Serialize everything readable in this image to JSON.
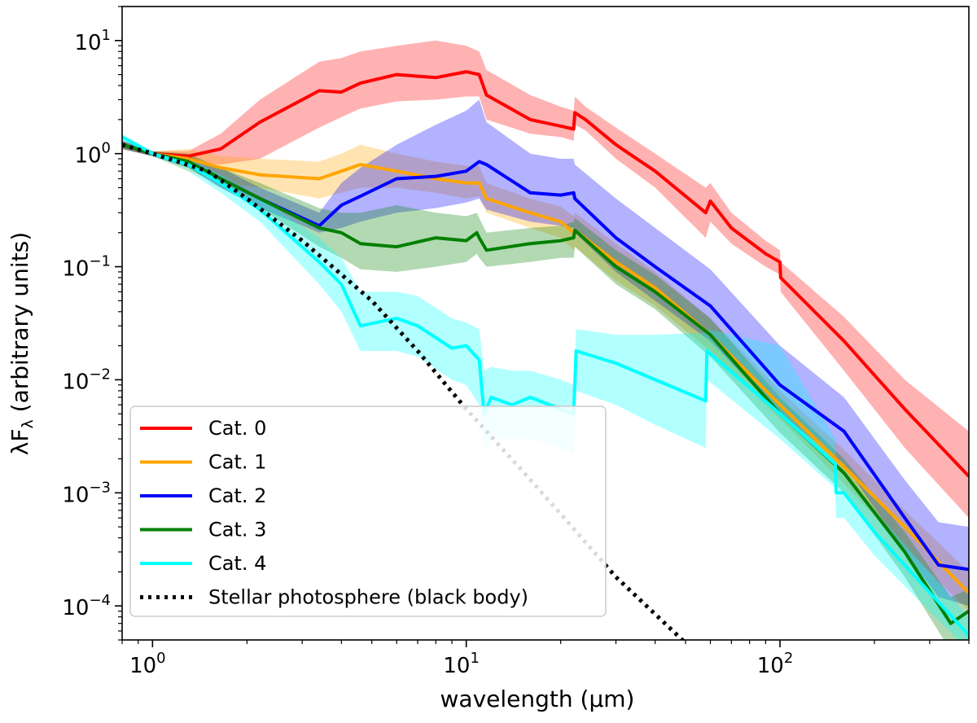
{
  "chart_data": {
    "type": "line",
    "x_scale": "log",
    "y_scale": "log",
    "xlim": [
      0.8,
      400
    ],
    "ylim": [
      5e-05,
      20
    ],
    "xlabel": "wavelength (μm)",
    "ylabel": "λF",
    "ylabel_sub": "λ",
    "ylabel_suffix": " (arbitrary units)",
    "x_ticks": [
      {
        "value": 1,
        "base": "10",
        "exp": "0"
      },
      {
        "value": 10,
        "base": "10",
        "exp": "1"
      },
      {
        "value": 100,
        "base": "10",
        "exp": "2"
      }
    ],
    "y_ticks": [
      {
        "value": 10,
        "base": "10",
        "exp": "1"
      },
      {
        "value": 1,
        "base": "10",
        "exp": "0"
      },
      {
        "value": 0.1,
        "base": "10",
        "exp": "−1"
      },
      {
        "value": 0.01,
        "base": "10",
        "exp": "−2"
      },
      {
        "value": 0.001,
        "base": "10",
        "exp": "−3"
      },
      {
        "value": 0.0001,
        "base": "10",
        "exp": "−4"
      }
    ],
    "legend_position": "lower-left",
    "series": [
      {
        "name": "Cat. 0",
        "color": "#ff0000",
        "x": [
          0.8,
          1.0,
          1.3,
          1.65,
          2.2,
          3.4,
          4.0,
          4.6,
          6.0,
          8.0,
          10.0,
          11.0,
          11.6,
          16.0,
          20.0,
          22.0,
          22.2,
          24.0,
          30.0,
          40.0,
          58.0,
          60.0,
          70.0,
          90.0,
          100.0,
          100.5,
          160.0,
          250.0,
          400.0
        ],
        "y": [
          1.2,
          1.0,
          0.95,
          1.1,
          1.9,
          3.6,
          3.5,
          4.2,
          5.0,
          4.7,
          5.3,
          5.0,
          3.3,
          2.0,
          1.75,
          1.65,
          2.3,
          2.0,
          1.2,
          0.7,
          0.3,
          0.38,
          0.22,
          0.13,
          0.11,
          0.08,
          0.022,
          0.0055,
          0.0014
        ],
        "band_low": [
          1.1,
          0.95,
          0.85,
          0.8,
          0.9,
          1.7,
          2.1,
          2.5,
          2.9,
          3.0,
          3.2,
          3.2,
          2.0,
          1.5,
          1.4,
          1.3,
          1.8,
          1.6,
          0.9,
          0.5,
          0.18,
          0.25,
          0.16,
          0.1,
          0.085,
          0.06,
          0.012,
          0.0025,
          0.0006
        ],
        "band_high": [
          1.3,
          1.05,
          1.05,
          1.5,
          3.0,
          6.5,
          7.0,
          8.0,
          9.0,
          10.0,
          9.0,
          8.0,
          5.5,
          3.3,
          2.6,
          2.4,
          3.2,
          2.6,
          1.7,
          1.0,
          0.5,
          0.55,
          0.3,
          0.17,
          0.14,
          0.11,
          0.036,
          0.01,
          0.0035
        ]
      },
      {
        "name": "Cat. 1",
        "color": "#ffa500",
        "x": [
          0.8,
          1.0,
          1.3,
          1.65,
          2.2,
          3.4,
          4.0,
          4.6,
          6.0,
          8.0,
          10.0,
          11.0,
          11.6,
          16.0,
          20.0,
          22.0,
          22.2,
          30.0,
          40.0,
          60.0,
          100.0,
          160.0,
          250.0,
          400.0
        ],
        "y": [
          1.2,
          1.0,
          0.9,
          0.75,
          0.65,
          0.6,
          0.7,
          0.8,
          0.7,
          0.6,
          0.55,
          0.55,
          0.4,
          0.3,
          0.25,
          0.2,
          0.21,
          0.11,
          0.065,
          0.025,
          0.006,
          0.0017,
          0.0005,
          0.00013
        ],
        "band_low": [
          1.1,
          0.95,
          0.7,
          0.55,
          0.5,
          0.4,
          0.45,
          0.5,
          0.5,
          0.45,
          0.4,
          0.42,
          0.3,
          0.22,
          0.18,
          0.14,
          0.15,
          0.075,
          0.045,
          0.018,
          0.0045,
          0.0012,
          0.00033,
          9e-05
        ],
        "band_high": [
          1.3,
          1.05,
          1.1,
          0.95,
          0.9,
          0.85,
          1.0,
          1.2,
          1.0,
          0.85,
          0.78,
          0.78,
          0.55,
          0.4,
          0.34,
          0.28,
          0.3,
          0.16,
          0.09,
          0.035,
          0.008,
          0.0024,
          0.0007,
          0.0002
        ]
      },
      {
        "name": "Cat. 2",
        "color": "#0000ff",
        "x": [
          0.8,
          1.0,
          1.3,
          1.65,
          2.2,
          3.4,
          4.0,
          4.6,
          6.0,
          8.0,
          10.0,
          11.0,
          11.6,
          16.0,
          20.0,
          22.0,
          22.2,
          30.0,
          40.0,
          60.0,
          100.0,
          160.0,
          250.0,
          320.0,
          400.0
        ],
        "y": [
          1.2,
          1.0,
          0.85,
          0.6,
          0.4,
          0.23,
          0.35,
          0.42,
          0.6,
          0.63,
          0.7,
          0.85,
          0.8,
          0.45,
          0.43,
          0.45,
          0.4,
          0.18,
          0.1,
          0.045,
          0.009,
          0.0035,
          0.0006,
          0.00023,
          0.00021
        ],
        "band_low": [
          1.1,
          0.95,
          0.75,
          0.5,
          0.33,
          0.2,
          0.22,
          0.25,
          0.3,
          0.33,
          0.37,
          0.4,
          0.32,
          0.25,
          0.23,
          0.22,
          0.2,
          0.09,
          0.05,
          0.022,
          0.005,
          0.0018,
          0.0003,
          0.00012,
          0.0001
        ],
        "band_high": [
          1.3,
          1.05,
          0.95,
          0.75,
          0.5,
          0.3,
          0.55,
          0.75,
          1.2,
          1.8,
          2.4,
          3.0,
          1.9,
          1.0,
          0.9,
          0.9,
          0.8,
          0.4,
          0.22,
          0.095,
          0.02,
          0.007,
          0.0013,
          0.00055,
          0.0005
        ]
      },
      {
        "name": "Cat. 3",
        "color": "#008000",
        "x": [
          0.8,
          1.0,
          1.3,
          1.65,
          2.2,
          3.4,
          4.0,
          4.6,
          6.0,
          8.0,
          10.0,
          10.8,
          11.0,
          11.6,
          16.0,
          20.0,
          22.0,
          22.2,
          30.0,
          40.0,
          60.0,
          100.0,
          160.0,
          250.0,
          350.0,
          400.0
        ],
        "y": [
          1.2,
          1.0,
          0.85,
          0.6,
          0.4,
          0.22,
          0.2,
          0.16,
          0.15,
          0.18,
          0.17,
          0.2,
          0.18,
          0.14,
          0.16,
          0.17,
          0.18,
          0.21,
          0.1,
          0.06,
          0.025,
          0.005,
          0.0015,
          0.0003,
          7e-05,
          9e-05
        ],
        "band_low": [
          1.1,
          0.95,
          0.75,
          0.5,
          0.33,
          0.15,
          0.12,
          0.095,
          0.09,
          0.1,
          0.11,
          0.13,
          0.12,
          0.1,
          0.11,
          0.12,
          0.12,
          0.15,
          0.07,
          0.042,
          0.016,
          0.0034,
          0.001,
          0.00018,
          4e-05,
          5e-05
        ],
        "band_high": [
          1.3,
          1.05,
          1.0,
          0.75,
          0.55,
          0.33,
          0.3,
          0.3,
          0.35,
          0.3,
          0.28,
          0.3,
          0.27,
          0.2,
          0.22,
          0.23,
          0.25,
          0.27,
          0.14,
          0.085,
          0.035,
          0.007,
          0.002,
          0.00045,
          0.00012,
          0.00014
        ]
      },
      {
        "name": "Cat. 4",
        "color": "#00ffff",
        "x": [
          0.8,
          1.0,
          1.3,
          1.65,
          2.2,
          3.4,
          4.0,
          4.6,
          6.0,
          7.0,
          9.0,
          10.0,
          11.0,
          11.4,
          12.0,
          14.0,
          16.0,
          20.0,
          22.0,
          22.4,
          30.0,
          40.0,
          58.0,
          58.5,
          100.0,
          150.0,
          151.0,
          160.0,
          200.0,
          400.0
        ],
        "y": [
          1.4,
          1.0,
          0.8,
          0.55,
          0.32,
          0.11,
          0.07,
          0.03,
          0.035,
          0.03,
          0.019,
          0.02,
          0.015,
          0.005,
          0.007,
          0.006,
          0.007,
          0.0055,
          0.005,
          0.018,
          0.014,
          0.01,
          0.0065,
          0.018,
          0.005,
          0.0018,
          0.001,
          0.001,
          0.00045,
          5.5e-05
        ],
        "band_low": [
          1.3,
          0.95,
          0.7,
          0.45,
          0.25,
          0.07,
          0.04,
          0.018,
          0.018,
          0.016,
          0.01,
          0.009,
          0.006,
          0.0025,
          0.003,
          0.003,
          0.003,
          0.0025,
          0.0022,
          0.008,
          0.006,
          0.004,
          0.0025,
          0.01,
          0.003,
          0.0011,
          0.0006,
          0.0006,
          0.00028,
          4e-05
        ],
        "band_high": [
          1.5,
          1.05,
          0.9,
          0.65,
          0.4,
          0.18,
          0.12,
          0.06,
          0.06,
          0.055,
          0.035,
          0.032,
          0.028,
          0.012,
          0.013,
          0.012,
          0.012,
          0.01,
          0.009,
          0.028,
          0.025,
          0.025,
          0.026,
          0.028,
          0.02,
          0.003,
          0.0017,
          0.0016,
          0.0007,
          8e-05
        ]
      },
      {
        "name": "Stellar photosphere (black body)",
        "color": "#000000",
        "style": "dotted",
        "x": [
          0.8,
          1.0,
          1.5,
          2.0,
          3.0,
          5.0,
          7.0,
          10.0,
          15.0,
          20.0,
          30.0,
          50.0
        ],
        "y": [
          1.2,
          1.0,
          0.7,
          0.4,
          0.17,
          0.05,
          0.018,
          0.0055,
          0.0016,
          0.00065,
          0.00018,
          4.7e-05
        ]
      }
    ]
  }
}
